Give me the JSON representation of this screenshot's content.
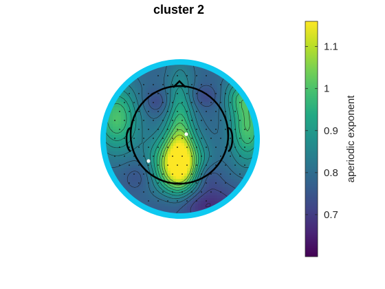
{
  "chart_data": {
    "type": "heatmap",
    "subtype": "scalp-topography",
    "title": "cluster 2",
    "colorbar": {
      "label": "aperiodic exponent",
      "colormap": "viridis",
      "range": [
        0.6,
        1.16
      ],
      "ticks": [
        {
          "value": 0.7,
          "label": "0.7"
        },
        {
          "value": 0.8,
          "label": "0.8"
        },
        {
          "value": 0.9,
          "label": "0.9"
        },
        {
          "value": 1.0,
          "label": "1"
        },
        {
          "value": 1.1,
          "label": "1.1"
        }
      ],
      "placement": "right"
    },
    "maxima": [
      {
        "region": "central-parietal midline",
        "value": 1.14
      },
      {
        "region": "left frontal",
        "value": 1.0
      },
      {
        "region": "right temporal",
        "value": 1.0
      }
    ],
    "minima": [
      {
        "region": "posterior",
        "value": 0.66
      }
    ],
    "highlight_color": "#00c4f2",
    "highlighted_electrodes_count": 2
  }
}
